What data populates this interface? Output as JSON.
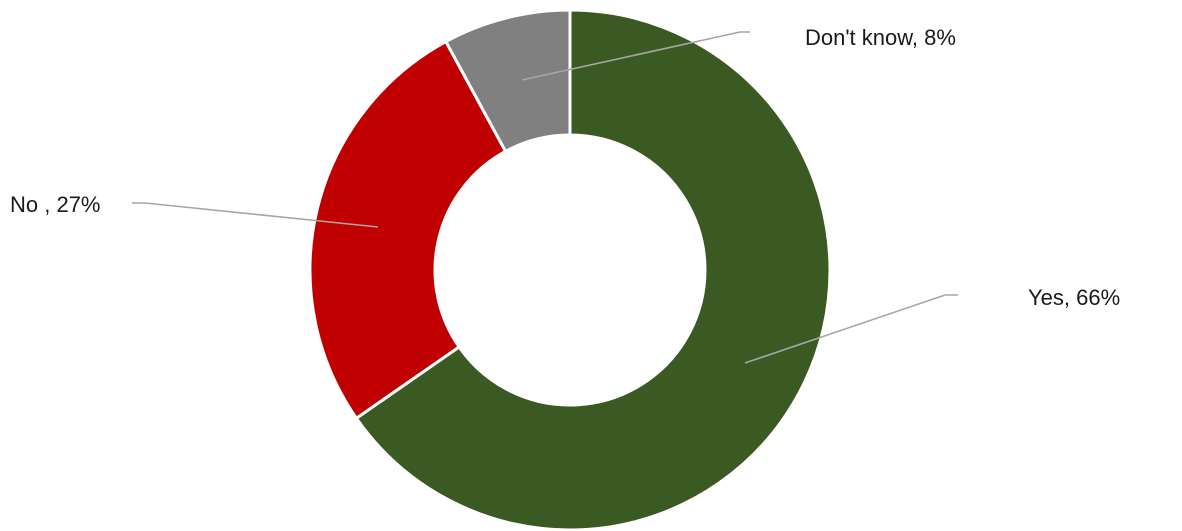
{
  "chart_data": {
    "type": "pie",
    "variant": "donut",
    "categories": [
      "Yes",
      "No",
      "Don't know"
    ],
    "values": [
      66,
      27,
      8
    ],
    "labels": [
      "Yes, 66%",
      "No , 27%",
      "Don't know, 8%"
    ],
    "colors": [
      "#3b5a23",
      "#c00000",
      "#808080"
    ],
    "leader_line_color": "#a6a6a6",
    "start_angle_deg": 0,
    "direction": "clockwise",
    "legend": "none",
    "title": ""
  }
}
